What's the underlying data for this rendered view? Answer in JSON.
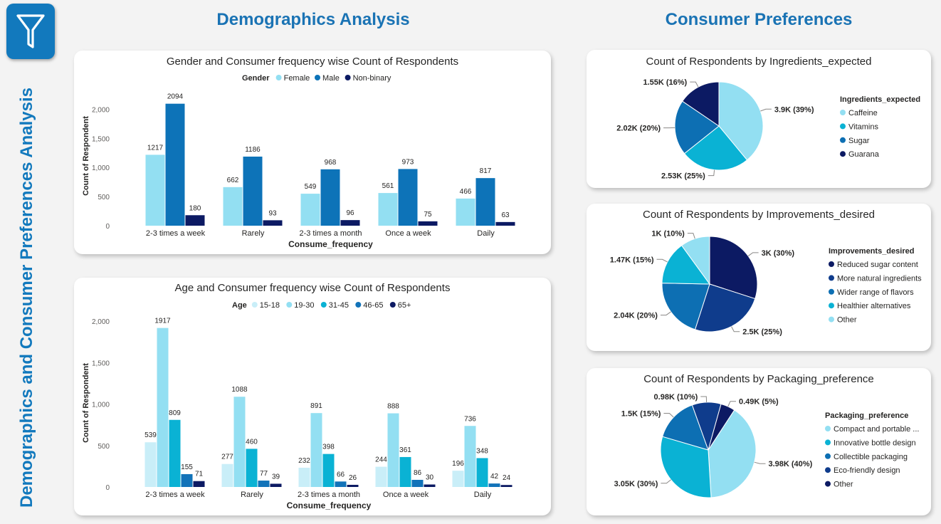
{
  "page": {
    "side_title": "Demographics and Consumer Preferences Analysis",
    "filter_icon": "filter-funnel-icon",
    "sections": {
      "demographics": "Demographics Analysis",
      "preferences": "Consumer Preferences"
    }
  },
  "chart_data": [
    {
      "id": "gender",
      "type": "bar",
      "title": "Gender and Consumer frequency wise Count of Respondents",
      "legend_title": "Gender",
      "xlabel": "Consume_frequency",
      "ylabel": "Count of Respondent",
      "ylim": [
        0,
        2200
      ],
      "yticks": [
        0,
        500,
        1000,
        1500,
        2000
      ],
      "ytick_labels": [
        "0",
        "500",
        "1,000",
        "1,500",
        "2,000"
      ],
      "categories": [
        "2-3 times a week",
        "Rarely",
        "2-3 times a month",
        "Once a week",
        "Daily"
      ],
      "series": [
        {
          "name": "Female",
          "color": "#93dff2",
          "values": [
            1217,
            662,
            549,
            561,
            466
          ]
        },
        {
          "name": "Male",
          "color": "#0d73b8",
          "values": [
            2094,
            1186,
            968,
            973,
            817
          ]
        },
        {
          "name": "Non-binary",
          "color": "#0c1a63",
          "values": [
            180,
            93,
            96,
            75,
            63
          ]
        }
      ]
    },
    {
      "id": "age",
      "type": "bar",
      "title": "Age and Consumer frequency wise Count of Respondents",
      "legend_title": "Age",
      "xlabel": "Consume_frequency",
      "ylabel": "Count of Respondent",
      "ylim": [
        0,
        2000
      ],
      "yticks": [
        0,
        500,
        1000,
        1500,
        2000
      ],
      "ytick_labels": [
        "0",
        "500",
        "1,000",
        "1,500",
        "2,000"
      ],
      "categories": [
        "2-3 times a week",
        "Rarely",
        "2-3 times a month",
        "Once a week",
        "Daily"
      ],
      "series": [
        {
          "name": "15-18",
          "color": "#c9eef8",
          "values": [
            539,
            277,
            232,
            244,
            196
          ]
        },
        {
          "name": "19-30",
          "color": "#93dff2",
          "values": [
            1917,
            1088,
            891,
            888,
            736
          ]
        },
        {
          "name": "31-45",
          "color": "#0ab2d4",
          "values": [
            809,
            460,
            398,
            361,
            348
          ]
        },
        {
          "name": "46-65",
          "color": "#1273b9",
          "values": [
            155,
            77,
            66,
            86,
            42
          ]
        },
        {
          "name": "65+",
          "color": "#0c1a63",
          "values": [
            71,
            39,
            26,
            30,
            24
          ]
        }
      ]
    },
    {
      "id": "ingredients",
      "type": "pie",
      "title": "Count of Respondents by Ingredients_expected",
      "legend_title": "Ingredients_expected",
      "slices": [
        {
          "name": "Caffeine",
          "value": 3900,
          "label": "3.9K (39%)",
          "color": "#93dff2"
        },
        {
          "name": "Vitamins",
          "value": 2530,
          "label": "2.53K (25%)",
          "color": "#0ab2d4"
        },
        {
          "name": "Sugar",
          "value": 2020,
          "label": "2.02K (20%)",
          "color": "#0d6fb3"
        },
        {
          "name": "Guarana",
          "value": 1550,
          "label": "1.55K (16%)",
          "color": "#0c1a63"
        }
      ]
    },
    {
      "id": "improvements",
      "type": "pie",
      "title": "Count of Respondents by Improvements_desired",
      "legend_title": "Improvements_desired",
      "slices": [
        {
          "name": "Reduced sugar content",
          "value": 3000,
          "label": "3K (30%)",
          "color": "#0c1a63"
        },
        {
          "name": "More natural ingredients",
          "value": 2500,
          "label": "2.5K (25%)",
          "color": "#0f3c8c"
        },
        {
          "name": "Wider range of flavors",
          "value": 2040,
          "label": "2.04K (20%)",
          "color": "#0d6fb3"
        },
        {
          "name": "Healthier alternatives",
          "value": 1470,
          "label": "1.47K (15%)",
          "color": "#0ab2d4"
        },
        {
          "name": "Other",
          "value": 1000,
          "label": "1K (10%)",
          "color": "#93dff2"
        }
      ]
    },
    {
      "id": "packaging",
      "type": "pie",
      "title": "Count of Respondents by Packaging_preference",
      "legend_title": "Packaging_preference",
      "slices": [
        {
          "name": "Compact and portable ...",
          "value": 3980,
          "label": "3.98K (40%)",
          "color": "#93dff2"
        },
        {
          "name": "Innovative bottle design",
          "value": 3050,
          "label": "3.05K (30%)",
          "color": "#0ab2d4"
        },
        {
          "name": "Collectible packaging",
          "value": 1500,
          "label": "1.5K (15%)",
          "color": "#0d6fb3"
        },
        {
          "name": "Eco-friendly design",
          "value": 980,
          "label": "0.98K (10%)",
          "color": "#0f3c8c"
        },
        {
          "name": "Other",
          "value": 490,
          "label": "0.49K (5%)",
          "color": "#0c1a63"
        }
      ]
    }
  ]
}
